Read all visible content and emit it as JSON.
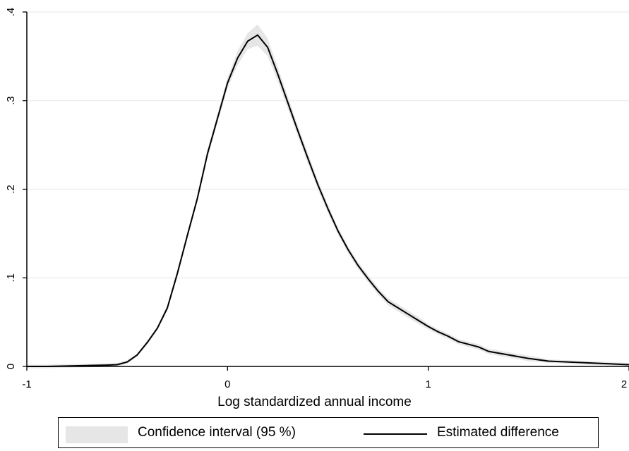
{
  "chart_data": {
    "type": "line",
    "xlabel": "Log standardized annual income",
    "ylabel": "",
    "xlim": [
      -1,
      2
    ],
    "ylim": [
      0,
      0.4
    ],
    "x_ticks": [
      -1,
      0,
      1,
      2
    ],
    "x_tick_labels": [
      "-1",
      "0",
      "1",
      "2"
    ],
    "y_ticks": [
      0,
      0.1,
      0.2,
      0.3,
      0.4
    ],
    "y_tick_labels": [
      "0",
      ".1",
      ".2",
      ".3",
      ".4"
    ],
    "grid": "horizontal",
    "legend_position": "bottom",
    "legend": [
      "Confidence interval (95 %)",
      "Estimated difference"
    ],
    "colors": {
      "ci_band": "#e6e6e6",
      "line": "#000000",
      "grid": "#ececec",
      "axis": "#000000"
    },
    "series": [
      {
        "name": "Estimated difference",
        "type": "line",
        "x": [
          -1.0,
          -0.9,
          -0.8,
          -0.7,
          -0.6,
          -0.55,
          -0.5,
          -0.45,
          -0.4,
          -0.35,
          -0.3,
          -0.25,
          -0.2,
          -0.15,
          -0.1,
          -0.05,
          0.0,
          0.05,
          0.1,
          0.15,
          0.2,
          0.25,
          0.3,
          0.35,
          0.4,
          0.45,
          0.5,
          0.55,
          0.6,
          0.65,
          0.7,
          0.75,
          0.8,
          0.85,
          0.9,
          0.95,
          1.0,
          1.05,
          1.1,
          1.15,
          1.2,
          1.25,
          1.3,
          1.35,
          1.4,
          1.5,
          1.6,
          1.7,
          1.8,
          1.9,
          2.0
        ],
        "y": [
          0.0,
          0.0,
          0.0005,
          0.001,
          0.0015,
          0.002,
          0.005,
          0.013,
          0.027,
          0.043,
          0.066,
          0.105,
          0.148,
          0.19,
          0.24,
          0.28,
          0.32,
          0.348,
          0.367,
          0.374,
          0.36,
          0.33,
          0.298,
          0.266,
          0.235,
          0.205,
          0.178,
          0.153,
          0.132,
          0.114,
          0.099,
          0.085,
          0.073,
          0.066,
          0.059,
          0.052,
          0.045,
          0.039,
          0.034,
          0.028,
          0.025,
          0.022,
          0.017,
          0.015,
          0.013,
          0.009,
          0.006,
          0.005,
          0.004,
          0.003,
          0.002
        ]
      },
      {
        "name": "Confidence interval (95 %)",
        "type": "band",
        "x": [
          -1.0,
          -0.9,
          -0.8,
          -0.7,
          -0.6,
          -0.55,
          -0.5,
          -0.45,
          -0.4,
          -0.35,
          -0.3,
          -0.25,
          -0.2,
          -0.15,
          -0.1,
          -0.05,
          0.0,
          0.05,
          0.1,
          0.15,
          0.2,
          0.25,
          0.3,
          0.35,
          0.4,
          0.45,
          0.5,
          0.55,
          0.6,
          0.65,
          0.7,
          0.75,
          0.8,
          0.85,
          0.9,
          0.95,
          1.0,
          1.05,
          1.1,
          1.15,
          1.2,
          1.25,
          1.3,
          1.35,
          1.4,
          1.5,
          1.6,
          1.7,
          1.8,
          1.9,
          2.0
        ],
        "lower": [
          -0.002,
          -0.002,
          -0.0015,
          -0.001,
          -0.0005,
          0.0,
          0.003,
          0.011,
          0.025,
          0.041,
          0.063,
          0.101,
          0.144,
          0.186,
          0.235,
          0.275,
          0.314,
          0.34,
          0.358,
          0.362,
          0.35,
          0.322,
          0.291,
          0.26,
          0.229,
          0.2,
          0.173,
          0.149,
          0.128,
          0.11,
          0.095,
          0.081,
          0.069,
          0.062,
          0.055,
          0.048,
          0.042,
          0.036,
          0.031,
          0.025,
          0.022,
          0.019,
          0.014,
          0.012,
          0.01,
          0.006,
          0.004,
          0.003,
          0.002,
          0.001,
          0.0
        ],
        "upper": [
          0.002,
          0.002,
          0.0025,
          0.003,
          0.0035,
          0.004,
          0.007,
          0.015,
          0.029,
          0.045,
          0.069,
          0.109,
          0.152,
          0.194,
          0.245,
          0.285,
          0.326,
          0.356,
          0.376,
          0.386,
          0.37,
          0.338,
          0.305,
          0.272,
          0.241,
          0.21,
          0.183,
          0.157,
          0.136,
          0.118,
          0.103,
          0.089,
          0.077,
          0.07,
          0.063,
          0.056,
          0.048,
          0.042,
          0.037,
          0.031,
          0.028,
          0.025,
          0.02,
          0.018,
          0.016,
          0.012,
          0.008,
          0.007,
          0.006,
          0.005,
          0.004
        ]
      }
    ]
  }
}
